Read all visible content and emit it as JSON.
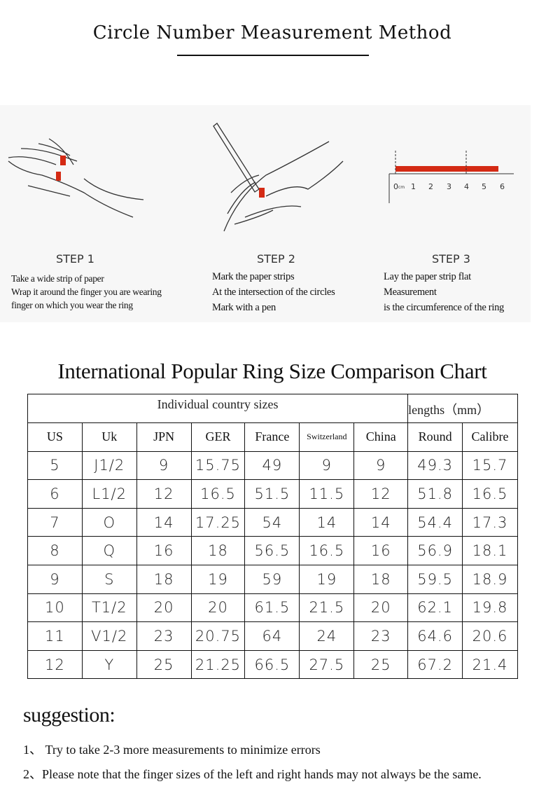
{
  "header": {
    "title": "Circle Number Measurement Method"
  },
  "steps": [
    {
      "label": "STEP 1",
      "lines": [
        "Take a wide strip of paper",
        "Wrap it around the finger you are wearing",
        "finger on which you wear the ring"
      ]
    },
    {
      "label": "STEP 2",
      "lines": [
        "Mark the paper strips",
        "At the intersection of the circles",
        "Mark with a pen"
      ]
    },
    {
      "label": "STEP 3",
      "lines": [
        "Lay the paper strip flat",
        "Measurement",
        "is the circumference of the ring"
      ]
    }
  ],
  "ruler": {
    "unit": "cm",
    "ticks": [
      "0",
      "1",
      "2",
      "3",
      "4",
      "5",
      "6"
    ]
  },
  "accent_color": "#d42a14",
  "chart": {
    "title": "International Popular Ring Size Comparison Chart",
    "group_headers": [
      "Individual country sizes",
      "lengths（mm）"
    ],
    "columns": [
      "US",
      "Uk",
      "JPN",
      "GER",
      "France",
      "Switzerland",
      "China",
      "Round",
      "Calibre"
    ],
    "rows": [
      [
        "5",
        "J1/2",
        "9",
        "15.75",
        "49",
        "9",
        "9",
        "49.3",
        "15.7"
      ],
      [
        "6",
        "L1/2",
        "12",
        "16.5",
        "51.5",
        "11.5",
        "12",
        "51.8",
        "16.5"
      ],
      [
        "7",
        "O",
        "14",
        "17.25",
        "54",
        "14",
        "14",
        "54.4",
        "17.3"
      ],
      [
        "8",
        "Q",
        "16",
        "18",
        "56.5",
        "16.5",
        "16",
        "56.9",
        "18.1"
      ],
      [
        "9",
        "S",
        "18",
        "19",
        "59",
        "19",
        "18",
        "59.5",
        "18.9"
      ],
      [
        "10",
        "T1/2",
        "20",
        "20",
        "61.5",
        "21.5",
        "20",
        "62.1",
        "19.8"
      ],
      [
        "11",
        "V1/2",
        "23",
        "20.75",
        "64",
        "24",
        "23",
        "64.6",
        "20.6"
      ],
      [
        "12",
        "Y",
        "25",
        "21.25",
        "66.5",
        "27.5",
        "25",
        "67.2",
        "21.4"
      ]
    ]
  },
  "suggestion": {
    "title": "suggestion:",
    "items": [
      "1、 Try to take 2-3 more measurements to minimize errors",
      "2、Please note that the finger sizes of the left and right hands may not always be the same."
    ]
  }
}
